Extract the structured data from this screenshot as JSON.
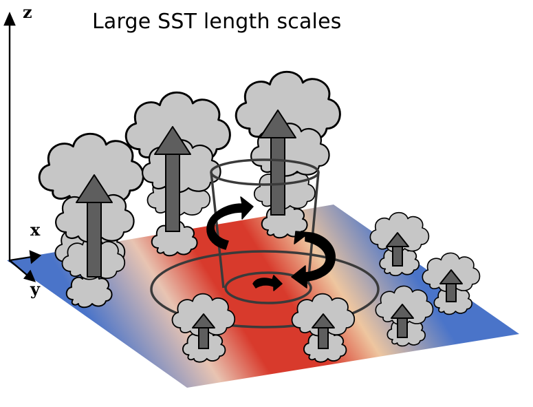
{
  "title": "Large SST length scales",
  "axes": {
    "z": "z",
    "x": "x",
    "y": "y"
  },
  "colors": {
    "warm": "#d83a2c",
    "neutral": "#f2c9a4",
    "cold": "#4a74c9",
    "cloud_fill": "#c6c6c6",
    "arrow_fill": "#5e5e5e",
    "circulation": "#111111"
  }
}
